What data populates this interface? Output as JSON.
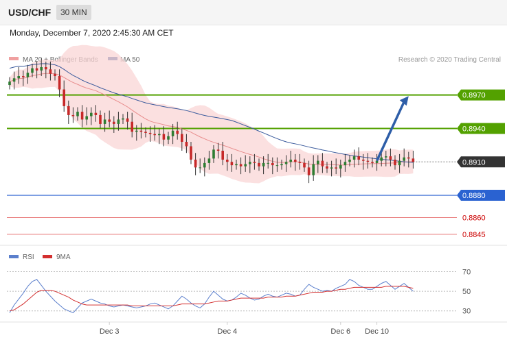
{
  "header": {
    "symbol": "USD/CHF",
    "timeframe": "30 MIN",
    "datetime": "Monday, December 7, 2020 2:45:30 AM CET"
  },
  "credit": "Research © 2020 Trading Central",
  "colors": {
    "candle_up": "#2e7d32",
    "candle_down": "#c62828",
    "resistance": "#53a100",
    "support": "#2a62d1",
    "support_red": "#e35a5a",
    "ma50": "#3a5a9c",
    "ma20": "#e88c8c",
    "bollinger_fill": "#f9d6d6",
    "rsi": "#5b7fcc",
    "rsi_ma": "#d32f2f",
    "arrow": "#2e5ea8",
    "current": "#333333"
  },
  "chart_data": [
    {
      "type": "candlestick",
      "title": "USD/CHF",
      "timeframe": "30 MIN",
      "legend": [
        {
          "name": "MA 20 + Bollinger Bands",
          "color": "#f0a0a0"
        },
        {
          "name": "MA 50",
          "color": "#3a5a9c"
        }
      ],
      "xlabels": [
        {
          "index": 22,
          "label": "Dec 3"
        },
        {
          "index": 48,
          "label": "Dec 4"
        },
        {
          "index": 73,
          "label": "Dec 6"
        },
        {
          "index": 81,
          "label": "Dec 10"
        }
      ],
      "ylim": [
        0.8837,
        0.8995
      ],
      "levels": [
        {
          "value": 0.897,
          "label": "0.8970",
          "kind": "resistance"
        },
        {
          "value": 0.894,
          "label": "0.8940",
          "kind": "resistance"
        },
        {
          "value": 0.891,
          "label": "0.8910",
          "kind": "current"
        },
        {
          "value": 0.888,
          "label": "0.8880",
          "kind": "support"
        },
        {
          "value": 0.886,
          "label": "0.8860",
          "kind": "support-red"
        },
        {
          "value": 0.8845,
          "label": "0.8845",
          "kind": "support-red"
        }
      ],
      "arrow": {
        "from_index": 81,
        "from_value": 0.8911,
        "to_index": 88,
        "to_value": 0.8969
      },
      "close": [
        0.8982,
        0.8985,
        0.8987,
        0.8986,
        0.899,
        0.8994,
        0.8992,
        0.8995,
        0.8993,
        0.8989,
        0.8987,
        0.8975,
        0.896,
        0.8952,
        0.8951,
        0.8955,
        0.8948,
        0.8951,
        0.8954,
        0.8952,
        0.8944,
        0.8948,
        0.8946,
        0.8944,
        0.8948,
        0.8949,
        0.8946,
        0.8937,
        0.8938,
        0.8937,
        0.8936,
        0.8935,
        0.8934,
        0.8935,
        0.893,
        0.8933,
        0.8938,
        0.8935,
        0.8928,
        0.8924,
        0.8912,
        0.8905,
        0.8905,
        0.8909,
        0.8913,
        0.8921,
        0.892,
        0.8912,
        0.891,
        0.8907,
        0.8908,
        0.8906,
        0.8908,
        0.891,
        0.8909,
        0.8906,
        0.8909,
        0.8909,
        0.8907,
        0.8907,
        0.8908,
        0.891,
        0.8912,
        0.891,
        0.8909,
        0.8905,
        0.8898,
        0.8908,
        0.8911,
        0.8906,
        0.8904,
        0.8905,
        0.8904,
        0.8907,
        0.891,
        0.8912,
        0.8915,
        0.8912,
        0.8911,
        0.891,
        0.8909,
        0.8911,
        0.8914,
        0.8915,
        0.8912,
        0.8907,
        0.8911,
        0.8914,
        0.8913,
        0.891
      ]
    },
    {
      "type": "line",
      "legend": [
        {
          "name": "RSI",
          "color": "#5b7fcc"
        },
        {
          "name": "9MA",
          "color": "#d32f2f"
        }
      ],
      "ylim": [
        20,
        78
      ],
      "levels": [
        70,
        50,
        30
      ],
      "series": [
        {
          "name": "RSI",
          "values": [
            28,
            36,
            42,
            48,
            55,
            60,
            62,
            56,
            50,
            45,
            40,
            36,
            32,
            30,
            28,
            33,
            38,
            40,
            42,
            40,
            38,
            37,
            35,
            34,
            35,
            36,
            35,
            34,
            33,
            34,
            35,
            37,
            38,
            36,
            34,
            32,
            35,
            40,
            45,
            42,
            38,
            35,
            33,
            37,
            44,
            50,
            46,
            42,
            40,
            41,
            44,
            48,
            46,
            43,
            41,
            42,
            45,
            47,
            45,
            44,
            46,
            48,
            47,
            45,
            46,
            52,
            57,
            54,
            52,
            50,
            51,
            50,
            53,
            55,
            57,
            62,
            60,
            56,
            54,
            52,
            52,
            55,
            58,
            60,
            56,
            52,
            55,
            58,
            54,
            50
          ]
        },
        {
          "name": "9MA",
          "values": [
            30,
            31,
            34,
            37,
            41,
            45,
            49,
            51,
            51,
            51,
            50,
            48,
            46,
            44,
            41,
            39,
            37,
            36,
            36,
            36,
            36,
            36,
            36,
            36,
            36,
            36,
            36,
            35,
            35,
            35,
            35,
            35,
            35,
            35,
            35,
            35,
            35,
            36,
            37,
            37,
            37,
            37,
            37,
            37,
            38,
            39,
            40,
            40,
            40,
            41,
            42,
            43,
            43,
            43,
            43,
            43,
            43,
            44,
            44,
            44,
            44,
            45,
            45,
            45,
            46,
            47,
            48,
            49,
            49,
            49,
            50,
            50,
            51,
            52,
            52,
            53,
            54,
            54,
            54,
            54,
            54,
            54,
            54,
            55,
            55,
            55,
            55,
            55,
            54,
            53
          ]
        }
      ]
    }
  ]
}
